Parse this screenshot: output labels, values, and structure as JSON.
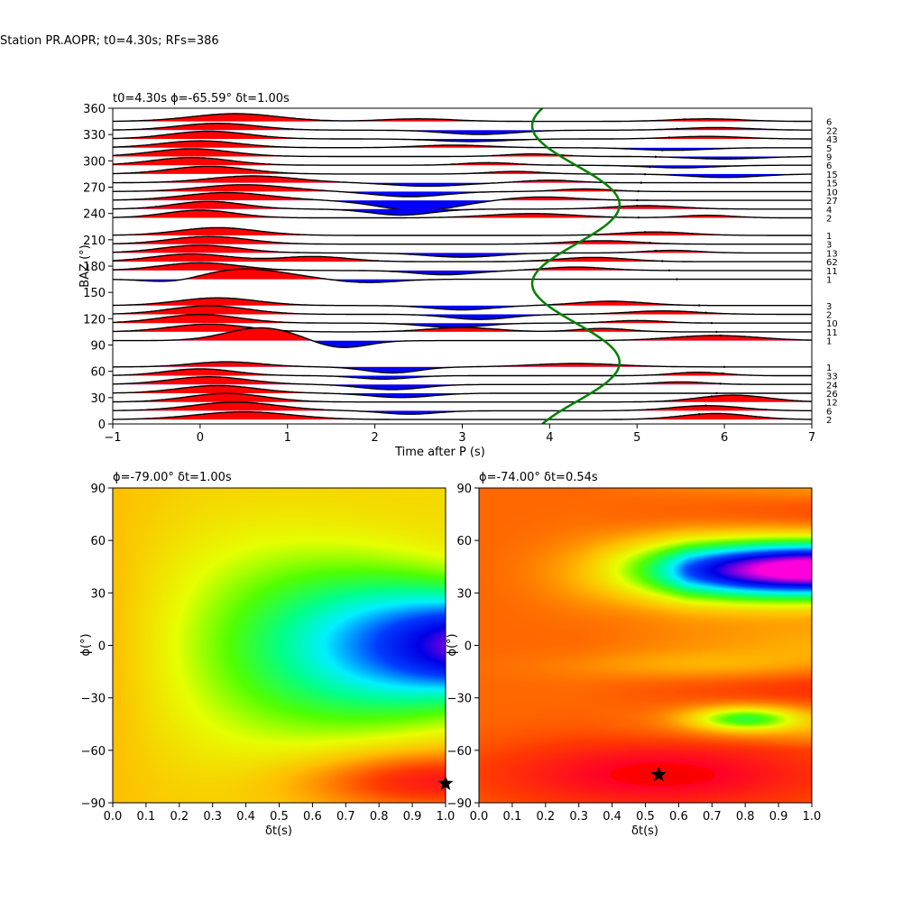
{
  "suptitle": "Station PR.AOPR; t0=4.30s; RFs=386",
  "chart_data": [
    {
      "type": "wiggle",
      "title": "t0=4.30s ϕ=-65.59° δt=1.00s",
      "xlabel": "Time after P (s)",
      "ylabel": "BAZ (°)",
      "xlim": [
        -1,
        7
      ],
      "ylim": [
        0,
        360
      ],
      "x_ticks": [
        "−1",
        "0",
        "1",
        "2",
        "3",
        "4",
        "5",
        "6",
        "7"
      ],
      "y_ticks": [
        "0",
        "30",
        "60",
        "90",
        "120",
        "150",
        "180",
        "210",
        "240",
        "270",
        "300",
        "330",
        "360"
      ],
      "fill_positive": "#ff0000",
      "fill_negative": "#0000ff",
      "curve_color": "#008000",
      "traces": [
        {
          "baz": 5,
          "count": "2",
          "p": [
            [
              0.5,
              0.9,
              0.55
            ],
            [
              5.9,
              0.7,
              0.4
            ]
          ]
        },
        {
          "baz": 15,
          "count": "6",
          "p": [
            [
              0.4,
              1.0,
              0.5
            ],
            [
              5.8,
              0.6,
              0.4
            ],
            [
              2.4,
              -0.4,
              0.3
            ]
          ]
        },
        {
          "baz": 25,
          "count": "12",
          "p": [
            [
              0.3,
              1.0,
              0.45
            ],
            [
              6.1,
              0.8,
              0.4
            ]
          ]
        },
        {
          "baz": 35,
          "count": "26",
          "p": [
            [
              0.2,
              0.9,
              0.45
            ],
            [
              2.3,
              -0.5,
              0.35
            ]
          ]
        },
        {
          "baz": 45,
          "count": "24",
          "p": [
            [
              0.1,
              0.9,
              0.45
            ],
            [
              2.2,
              -0.6,
              0.35
            ],
            [
              5.5,
              0.3,
              0.3
            ]
          ]
        },
        {
          "baz": 55,
          "count": "33",
          "p": [
            [
              0.0,
              0.8,
              0.4
            ],
            [
              2.1,
              -0.4,
              0.3
            ],
            [
              5.7,
              0.4,
              0.3
            ]
          ]
        },
        {
          "baz": 65,
          "count": "1",
          "p": [
            [
              0.3,
              0.6,
              0.4
            ],
            [
              2.2,
              -0.7,
              0.3
            ],
            [
              4.3,
              0.4,
              0.5
            ]
          ]
        },
        {
          "baz": 95,
          "count": "1",
          "p": [
            [
              0.7,
              1.5,
              0.4
            ],
            [
              1.6,
              -0.9,
              0.3
            ],
            [
              5.9,
              0.6,
              0.5
            ]
          ]
        },
        {
          "baz": 105,
          "count": "11",
          "p": [
            [
              0.1,
              0.9,
              0.45
            ],
            [
              3.0,
              0.5,
              0.4
            ],
            [
              4.6,
              0.4,
              0.3
            ]
          ]
        },
        {
          "baz": 115,
          "count": "10",
          "p": [
            [
              0.0,
              1.0,
              0.45
            ],
            [
              2.9,
              -0.5,
              0.35
            ],
            [
              5.0,
              0.3,
              0.3
            ]
          ]
        },
        {
          "baz": 125,
          "count": "2",
          "p": [
            [
              0.1,
              1.0,
              0.45
            ],
            [
              3.2,
              -0.6,
              0.35
            ],
            [
              5.3,
              0.4,
              0.4
            ]
          ]
        },
        {
          "baz": 135,
          "count": "3",
          "p": [
            [
              0.2,
              0.9,
              0.45
            ],
            [
              3.0,
              -0.5,
              0.35
            ],
            [
              4.7,
              0.5,
              0.4
            ]
          ]
        },
        {
          "baz": 165,
          "count": "1",
          "p": [
            [
              0.5,
              1.2,
              0.5
            ],
            [
              -0.3,
              -0.5,
              0.3
            ],
            [
              1.9,
              -0.4,
              0.35
            ]
          ]
        },
        {
          "baz": 175,
          "count": "11",
          "p": [
            [
              0.0,
              0.9,
              0.45
            ],
            [
              2.8,
              -0.5,
              0.35
            ],
            [
              4.3,
              0.4,
              0.35
            ]
          ]
        },
        {
          "baz": 185,
          "count": "62",
          "p": [
            [
              -0.1,
              0.9,
              0.45
            ],
            [
              1.3,
              0.6,
              0.4
            ],
            [
              4.5,
              0.5,
              0.4
            ]
          ]
        },
        {
          "baz": 195,
          "count": "13",
          "p": [
            [
              0.0,
              0.9,
              0.45
            ],
            [
              3.0,
              -0.5,
              0.4
            ],
            [
              5.4,
              0.3,
              0.3
            ]
          ]
        },
        {
          "baz": 205,
          "count": "3",
          "p": [
            [
              0.1,
              0.9,
              0.45
            ],
            [
              4.6,
              0.4,
              0.4
            ]
          ]
        },
        {
          "baz": 215,
          "count": "1",
          "p": [
            [
              0.2,
              0.9,
              0.45
            ],
            [
              5.2,
              0.4,
              0.4
            ]
          ]
        },
        {
          "baz": 235,
          "count": "2",
          "p": [
            [
              0.0,
              0.9,
              0.4
            ],
            [
              3.8,
              0.5,
              0.5
            ],
            [
              5.8,
              0.3,
              0.3
            ]
          ]
        },
        {
          "baz": 245,
          "count": "4",
          "p": [
            [
              0.1,
              0.9,
              0.4
            ],
            [
              2.3,
              -0.7,
              0.35
            ],
            [
              5.1,
              0.4,
              0.4
            ]
          ]
        },
        {
          "baz": 255,
          "count": "27",
          "p": [
            [
              0.3,
              0.9,
              0.5
            ],
            [
              2.5,
              -1.2,
              0.45
            ],
            [
              3.9,
              0.4,
              0.4
            ]
          ]
        },
        {
          "baz": 265,
          "count": "10",
          "p": [
            [
              0.5,
              0.8,
              0.5
            ],
            [
              2.4,
              -0.6,
              0.4
            ],
            [
              4.4,
              0.3,
              0.3
            ]
          ]
        },
        {
          "baz": 275,
          "count": "15",
          "p": [
            [
              0.6,
              0.8,
              0.5
            ],
            [
              2.6,
              -0.4,
              0.4
            ],
            [
              4.0,
              0.3,
              0.3
            ]
          ]
        },
        {
          "baz": 285,
          "count": "15",
          "p": [
            [
              0.1,
              0.9,
              0.45
            ],
            [
              3.6,
              0.3,
              0.3
            ],
            [
              6.0,
              -0.4,
              0.4
            ]
          ]
        },
        {
          "baz": 295,
          "count": "6",
          "p": [
            [
              -0.1,
              0.9,
              0.45
            ],
            [
              3.3,
              0.3,
              0.3
            ],
            [
              5.5,
              -0.3,
              0.4
            ]
          ]
        },
        {
          "baz": 305,
          "count": "9",
          "p": [
            [
              -0.1,
              0.9,
              0.45
            ],
            [
              3.8,
              0.3,
              0.3
            ],
            [
              6.0,
              -0.3,
              0.4
            ]
          ]
        },
        {
          "baz": 315,
          "count": "5",
          "p": [
            [
              0.0,
              0.8,
              0.45
            ],
            [
              2.9,
              0.3,
              0.4
            ],
            [
              5.4,
              -0.3,
              0.4
            ]
          ]
        },
        {
          "baz": 325,
          "count": "43",
          "p": [
            [
              0.1,
              0.9,
              0.45
            ],
            [
              3.1,
              -0.3,
              0.4
            ],
            [
              5.8,
              0.3,
              0.4
            ]
          ]
        },
        {
          "baz": 335,
          "count": "22",
          "p": [
            [
              0.2,
              0.8,
              0.45
            ],
            [
              3.2,
              -0.5,
              0.4
            ],
            [
              5.9,
              0.3,
              0.4
            ]
          ]
        },
        {
          "baz": 345,
          "count": "6",
          "p": [
            [
              0.4,
              0.9,
              0.5
            ],
            [
              2.5,
              0.3,
              0.4
            ],
            [
              5.8,
              0.3,
              0.4
            ]
          ]
        }
      ],
      "curve": {
        "t0": 4.3,
        "amp": 0.5
      }
    },
    {
      "type": "heatmap",
      "title": "ϕ=-79.00° δt=1.00s",
      "xlabel": "δt(s)",
      "ylabel": "ϕ(°)",
      "xlim": [
        0,
        1
      ],
      "ylim": [
        -90,
        90
      ],
      "x_ticks": [
        "0.0",
        "0.1",
        "0.2",
        "0.3",
        "0.4",
        "0.5",
        "0.6",
        "0.7",
        "0.8",
        "0.9",
        "1.0"
      ],
      "y_ticks": [
        "−90",
        "−60",
        "−30",
        "0",
        "30",
        "60",
        "90"
      ],
      "colormap": "gist_rainbow",
      "best": {
        "dt": 1.0,
        "phi": -79
      }
    },
    {
      "type": "heatmap",
      "title": "ϕ=-74.00° δt=0.54s",
      "xlabel": "δt(s)",
      "ylabel": "ϕ(°)",
      "xlim": [
        0,
        1
      ],
      "ylim": [
        -90,
        90
      ],
      "x_ticks": [
        "0.0",
        "0.1",
        "0.2",
        "0.3",
        "0.4",
        "0.5",
        "0.6",
        "0.7",
        "0.8",
        "0.9",
        "1.0"
      ],
      "y_ticks": [
        "−90",
        "−60",
        "−30",
        "0",
        "30",
        "60",
        "90"
      ],
      "colormap": "gist_rainbow",
      "best": {
        "dt": 0.54,
        "phi": -74
      }
    }
  ]
}
